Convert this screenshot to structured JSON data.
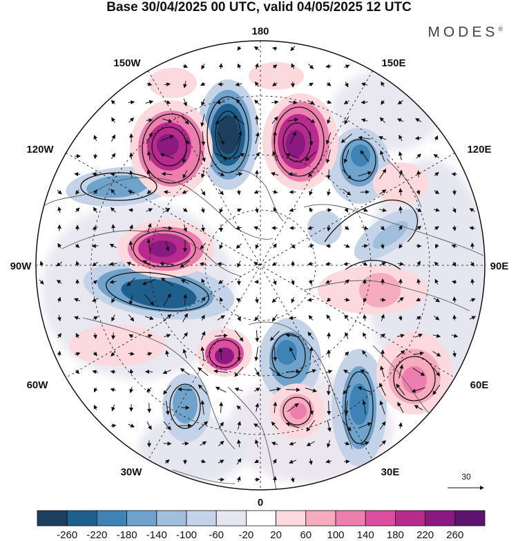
{
  "title": "Base 30/04/2025 00 UTC, valid 04/05/2025 12 UTC",
  "brand": "MODES",
  "brand_mark": "®",
  "longitude_labels": {
    "top": "180",
    "bottom": "0",
    "left": "90W",
    "right": "90E",
    "upper_left_1": "150W",
    "upper_left_2": "120W",
    "lower_left_1": "60W",
    "lower_left_2": "30W",
    "upper_right_1": "150E",
    "upper_right_2": "120E",
    "lower_right_1": "60E",
    "lower_right_2": "30E"
  },
  "vector_scale": "30",
  "colorbar": {
    "labels": [
      "-260",
      "-220",
      "-180",
      "-140",
      "-100",
      "-60",
      "-20",
      "20",
      "60",
      "100",
      "140",
      "180",
      "220",
      "260"
    ],
    "colors": [
      "#1c3f5e",
      "#1e5f8c",
      "#3d83b6",
      "#6fa3cc",
      "#9fbfdd",
      "#c5d3e8",
      "#e6e6f0",
      "#ffffff",
      "#fbd9dd",
      "#f6acbd",
      "#ed7fae",
      "#dd4ea0",
      "#b72b8f",
      "#8a1a80",
      "#5b1470"
    ]
  },
  "colors": {
    "negative_strong": "#1c3f5e",
    "negative_mid": "#3d83b6",
    "negative_light": "#c5d3e8",
    "neutral": "#e6e6f0",
    "positive_light": "#fbd9dd",
    "positive_mid": "#ed7fae",
    "positive_strong": "#8a1a80",
    "coastline": "#555555"
  }
}
